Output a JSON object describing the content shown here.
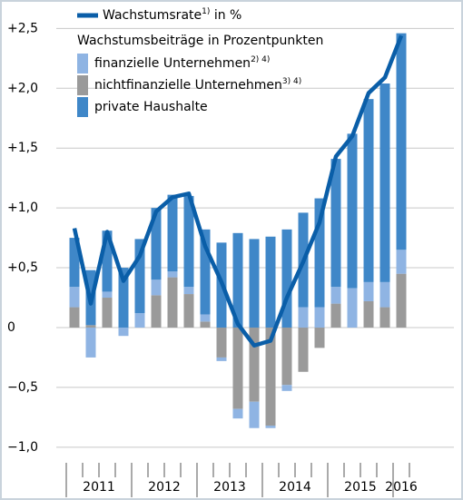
{
  "chart_data": {
    "type": "bar",
    "categories": [
      null,
      null,
      null,
      null,
      null,
      null,
      null,
      null,
      null,
      null,
      null,
      null,
      null,
      null,
      null,
      null,
      null,
      null,
      null,
      null,
      null
    ],
    "x_groups": [
      {
        "label": "2011",
        "count": 4
      },
      {
        "label": "2012",
        "count": 4
      },
      {
        "label": "2013",
        "count": 4
      },
      {
        "label": "2014",
        "count": 4
      },
      {
        "label": "2015",
        "count": 4
      },
      {
        "label": "2016",
        "count": 1
      }
    ],
    "legend_heading": "Wachstumsbeiträge in Prozentpunkten",
    "series": [
      {
        "name": "nichtfinanzielle Unternehmen",
        "name_note": "3) 4)",
        "color": "#9a9a9a",
        "values": [
          0.17,
          0.02,
          0.25,
          0,
          0,
          0.27,
          0.42,
          0.28,
          0.05,
          -0.25,
          -0.68,
          -0.62,
          -0.82,
          -0.48,
          -0.37,
          -0.17,
          0.2,
          0,
          0.22,
          0.17,
          0.45
        ]
      },
      {
        "name": "finanzielle Unternehmen",
        "name_note": "2) 4)",
        "color": "#8fb4e3",
        "values": [
          0.17,
          -0.25,
          0.05,
          -0.07,
          0.12,
          0.13,
          0.05,
          0.06,
          0.06,
          -0.03,
          -0.08,
          -0.22,
          -0.02,
          -0.05,
          0.17,
          0.17,
          0.14,
          0.33,
          0.16,
          0.21,
          0.2
        ]
      },
      {
        "name": "private Haushalte",
        "color": "#3f87c8",
        "values": [
          0.41,
          0.46,
          0.51,
          0.5,
          0.62,
          0.6,
          0.64,
          0.76,
          0.71,
          0.71,
          0.79,
          0.74,
          0.76,
          0.82,
          0.79,
          0.91,
          1.07,
          1.29,
          1.53,
          1.66,
          1.81
        ]
      },
      {
        "name": "Wachstumsrate",
        "name_note": "1)",
        "name_suffix": " in %",
        "type": "line",
        "color": "#0a5ea8",
        "values": [
          0.83,
          0.2,
          0.8,
          0.39,
          0.6,
          0.97,
          1.09,
          1.12,
          0.68,
          0.38,
          0.03,
          -0.15,
          -0.11,
          0.25,
          0.55,
          0.88,
          1.43,
          1.6,
          1.96,
          2.09,
          2.44
        ]
      }
    ],
    "legend_order": [
      3,
      1,
      0,
      2
    ],
    "ylim": [
      -1.1,
      2.7
    ],
    "yticks": [
      {
        "value": -1.0,
        "label": "−1,0"
      },
      {
        "value": -0.5,
        "label": "−0,5"
      },
      0,
      {
        "value": 0.5,
        "label": "+0,5"
      },
      {
        "value": 1.0,
        "label": "+1,0"
      },
      {
        "value": 1.5,
        "label": "+1,5"
      },
      {
        "value": 2.0,
        "label": "+2,0"
      },
      {
        "value": 2.5,
        "label": "+2,5"
      }
    ],
    "grid": true
  }
}
